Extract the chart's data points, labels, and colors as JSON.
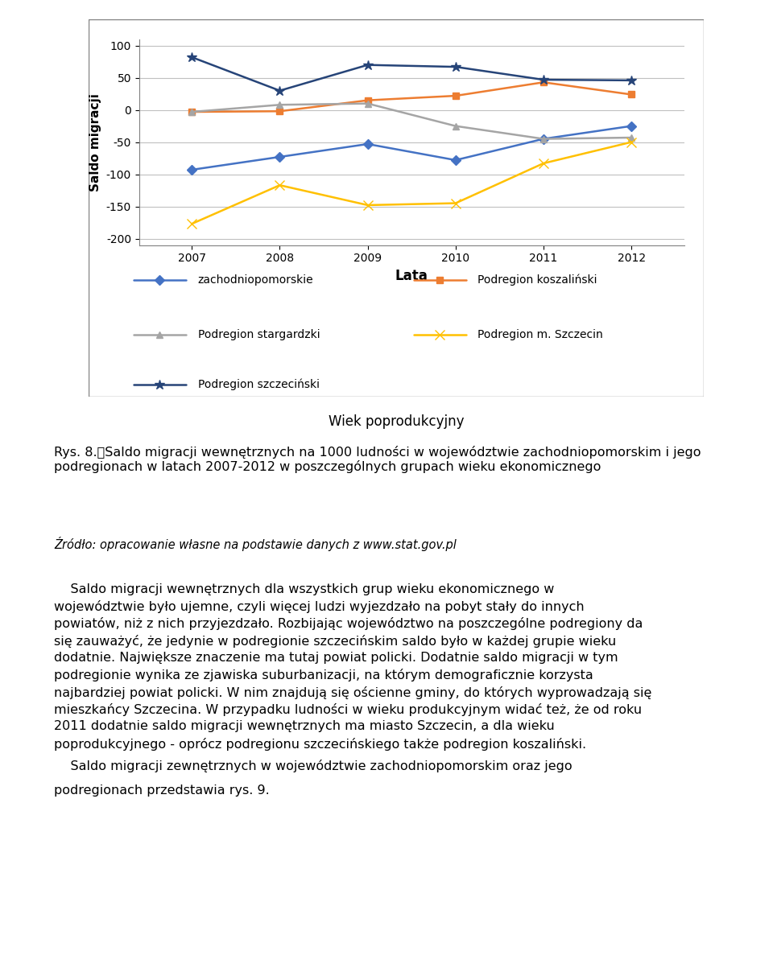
{
  "years": [
    2007,
    2008,
    2009,
    2010,
    2011,
    2012
  ],
  "series": {
    "zachodniopomorskie": {
      "values": [
        -93,
        -73,
        -53,
        -78,
        -45,
        -25
      ],
      "color": "#4472C4",
      "marker": "D",
      "markersize": 6,
      "linewidth": 1.8,
      "label": "zachodniopomorskie"
    },
    "koszalinski": {
      "values": [
        -3,
        -2,
        15,
        22,
        43,
        24
      ],
      "color": "#ED7D31",
      "marker": "s",
      "markersize": 6,
      "linewidth": 1.8,
      "label": "Podregion koszaliński"
    },
    "stargardzki": {
      "values": [
        -3,
        8,
        10,
        -25,
        -45,
        -43
      ],
      "color": "#A5A5A5",
      "marker": "^",
      "markersize": 6,
      "linewidth": 1.8,
      "label": "Podregion stargardzki"
    },
    "szczecin_miasto": {
      "values": [
        -177,
        -117,
        -148,
        -145,
        -83,
        -50
      ],
      "color": "#FFC000",
      "marker": "x",
      "markersize": 8,
      "linewidth": 1.8,
      "label": "Podregion m. Szczecin"
    },
    "szczecinski": {
      "values": [
        82,
        30,
        70,
        67,
        47,
        46
      ],
      "color": "#264478",
      "marker": "*",
      "markersize": 9,
      "linewidth": 1.8,
      "label": "Podregion szczeciński"
    }
  },
  "xlabel": "Lata",
  "ylabel": "Saldo migracji",
  "ylim": [
    -210,
    110
  ],
  "yticks": [
    -200,
    -150,
    -100,
    -50,
    0,
    50,
    100
  ],
  "xticks": [
    2007,
    2008,
    2009,
    2010,
    2011,
    2012
  ],
  "subtitle": "Wiek poprodukcyjny",
  "caption_bold": "Rys. 8.\tSaldo migracji wewnętrznych na 1000 ludności w województwie zachodniopomorskim i jego podregionach w latach 2007-2012 w poszczególnych grupach wieku ekonomicznego",
  "source": "Źródło: opracowanie własne na podstawie danych z www.stat.gov.pl",
  "para1": "Saldo migracji wewnętrznych dla wszystkich grup wieku ekonomicznego w województwie było ujemne, czyli więcej ludzi wyjezdzało na pobyt stały do innych powiatów, niż z nich przyjezdzało. Rozbijając województwo na poszczególne podregiony da się zauważyć, że jedynie w podregionie szczecińskim saldo było w każdej grupie wieku dodatnie. Największe znaczenie ma tutaj powiat policki. Dodatnie saldo migracji w tym podregionie wynika ze zjawiska suburbanizacji, na którym demograficznie korzysta najbardziej powiat policki. W nim znajdują się ościenne gminy, do których wyprowadzają się mieszkańcy Szczecina. W przypadku ludności w wieku produkcyjnym widać też, że od roku 2011 dodatnie saldo migracji wewnętrznych ma miasto Szczecin, a dla wieku poprodukcyjnego - oprócz podregionu szczecińskiego także podregion koszaliński.",
  "para2": "Saldo migracji zewnętrznych w województwie zachodniopomorskim oraz jego podregionach przedstawia rys. 9.",
  "grid_color": "#C0C0C0",
  "border_color": "#808080",
  "tick_fontsize": 10,
  "axis_label_fontsize": 11,
  "legend_fontsize": 10,
  "subtitle_fontsize": 12,
  "body_fontsize": 11.5
}
